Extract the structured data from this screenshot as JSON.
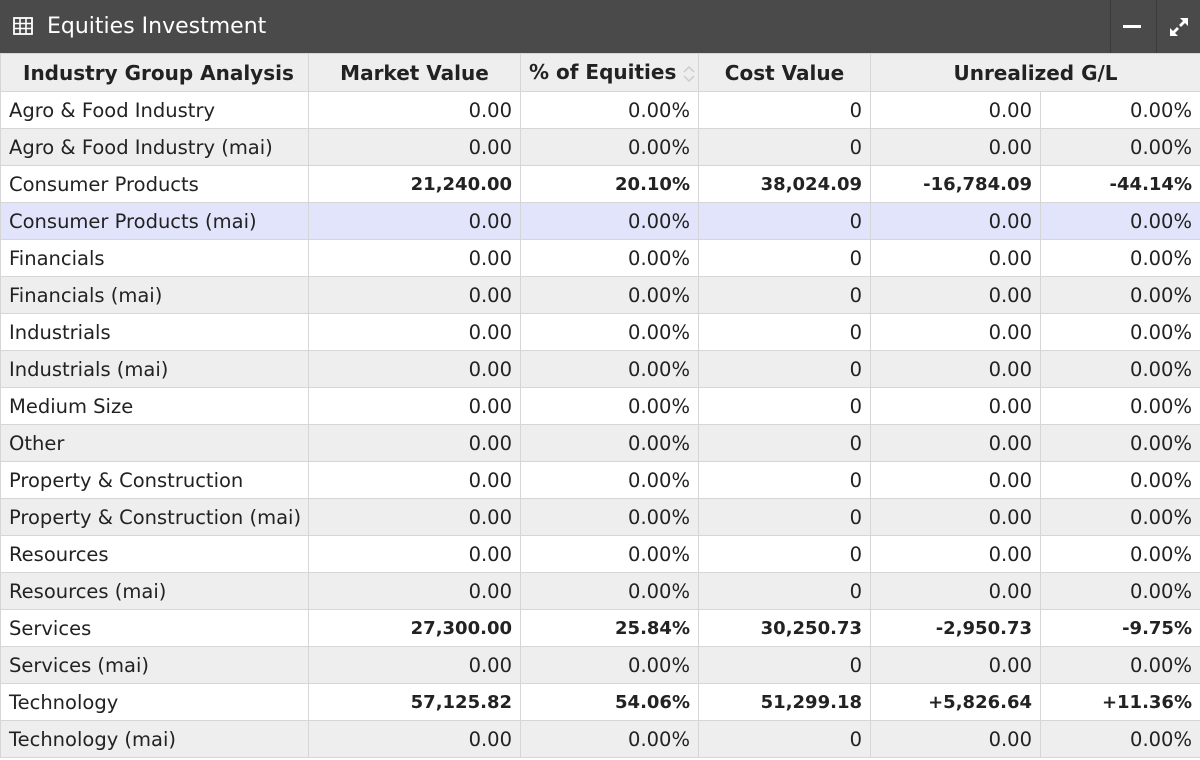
{
  "window": {
    "title": "Equities Investment",
    "icons": {
      "title": "table-icon",
      "minimize": "minus-icon",
      "maximize": "expand-icon"
    }
  },
  "table": {
    "headers": {
      "industry": "Industry Group Analysis",
      "market_value": "Market Value",
      "pct_equities": "% of Equities",
      "cost_value": "Cost Value",
      "unrealized": "Unrealized G/L"
    },
    "sort": {
      "column": "industry",
      "direction": "ascending"
    },
    "rows": [
      {
        "name": "Agro & Food Industry",
        "market_value": "0.00",
        "pct": "0.00%",
        "cost": "0",
        "gl": "0.00",
        "gl_pct": "0.00%"
      },
      {
        "name": "Agro & Food Industry (mai)",
        "market_value": "0.00",
        "pct": "0.00%",
        "cost": "0",
        "gl": "0.00",
        "gl_pct": "0.00%"
      },
      {
        "name": "Consumer Products",
        "market_value": "21,240.00",
        "pct": "20.10%",
        "cost": "38,024.09",
        "gl": "-16,784.09",
        "gl_pct": "-44.14%"
      },
      {
        "name": "Consumer Products (mai)",
        "market_value": "0.00",
        "pct": "0.00%",
        "cost": "0",
        "gl": "0.00",
        "gl_pct": "0.00%"
      },
      {
        "name": "Financials",
        "market_value": "0.00",
        "pct": "0.00%",
        "cost": "0",
        "gl": "0.00",
        "gl_pct": "0.00%"
      },
      {
        "name": "Financials (mai)",
        "market_value": "0.00",
        "pct": "0.00%",
        "cost": "0",
        "gl": "0.00",
        "gl_pct": "0.00%"
      },
      {
        "name": "Industrials",
        "market_value": "0.00",
        "pct": "0.00%",
        "cost": "0",
        "gl": "0.00",
        "gl_pct": "0.00%"
      },
      {
        "name": "Industrials (mai)",
        "market_value": "0.00",
        "pct": "0.00%",
        "cost": "0",
        "gl": "0.00",
        "gl_pct": "0.00%"
      },
      {
        "name": "Medium Size",
        "market_value": "0.00",
        "pct": "0.00%",
        "cost": "0",
        "gl": "0.00",
        "gl_pct": "0.00%"
      },
      {
        "name": "Other",
        "market_value": "0.00",
        "pct": "0.00%",
        "cost": "0",
        "gl": "0.00",
        "gl_pct": "0.00%"
      },
      {
        "name": "Property & Construction",
        "market_value": "0.00",
        "pct": "0.00%",
        "cost": "0",
        "gl": "0.00",
        "gl_pct": "0.00%"
      },
      {
        "name": "Property & Construction (mai)",
        "market_value": "0.00",
        "pct": "0.00%",
        "cost": "0",
        "gl": "0.00",
        "gl_pct": "0.00%"
      },
      {
        "name": "Resources",
        "market_value": "0.00",
        "pct": "0.00%",
        "cost": "0",
        "gl": "0.00",
        "gl_pct": "0.00%"
      },
      {
        "name": "Resources (mai)",
        "market_value": "0.00",
        "pct": "0.00%",
        "cost": "0",
        "gl": "0.00",
        "gl_pct": "0.00%"
      },
      {
        "name": "Services",
        "market_value": "27,300.00",
        "pct": "25.84%",
        "cost": "30,250.73",
        "gl": "-2,950.73",
        "gl_pct": "-9.75%"
      },
      {
        "name": "Services (mai)",
        "market_value": "0.00",
        "pct": "0.00%",
        "cost": "0",
        "gl": "0.00",
        "gl_pct": "0.00%"
      },
      {
        "name": "Technology",
        "market_value": "57,125.82",
        "pct": "54.06%",
        "cost": "51,299.18",
        "gl": "+5,826.64",
        "gl_pct": "+11.36%"
      },
      {
        "name": "Technology (mai)",
        "market_value": "0.00",
        "pct": "0.00%",
        "cost": "0",
        "gl": "0.00",
        "gl_pct": "0.00%"
      }
    ],
    "highlighted_row": "Consumer Products (mai)"
  },
  "colors": {
    "titlebar": "#4a4a4a",
    "header_bg": "#eeeeee",
    "row_alt": "#eeeeee",
    "row_highlight": "#e2e4fb"
  }
}
